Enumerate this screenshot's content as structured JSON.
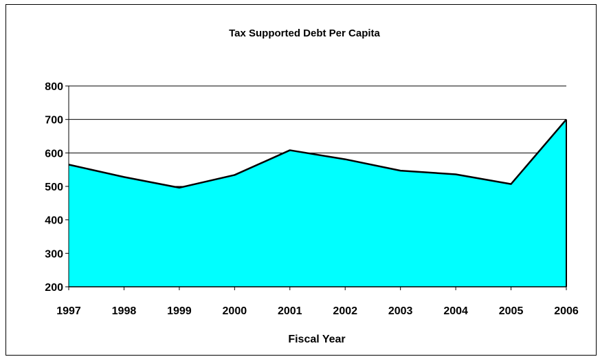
{
  "chart_data": {
    "type": "area",
    "title": "Tax Supported Debt Per Capita",
    "xlabel": "Fiscal Year",
    "ylabel": "",
    "x": [
      "1997",
      "1998",
      "1999",
      "2000",
      "2001",
      "2002",
      "2003",
      "2004",
      "2005",
      "2006"
    ],
    "values": [
      565,
      528,
      496,
      534,
      608,
      581,
      547,
      536,
      507,
      700
    ],
    "ylim": [
      200,
      800
    ],
    "yticks": [
      200,
      300,
      400,
      500,
      600,
      700,
      800
    ],
    "grid": true,
    "legend": "none",
    "fill_color": "#00FFFF",
    "line_color": "#000000"
  }
}
